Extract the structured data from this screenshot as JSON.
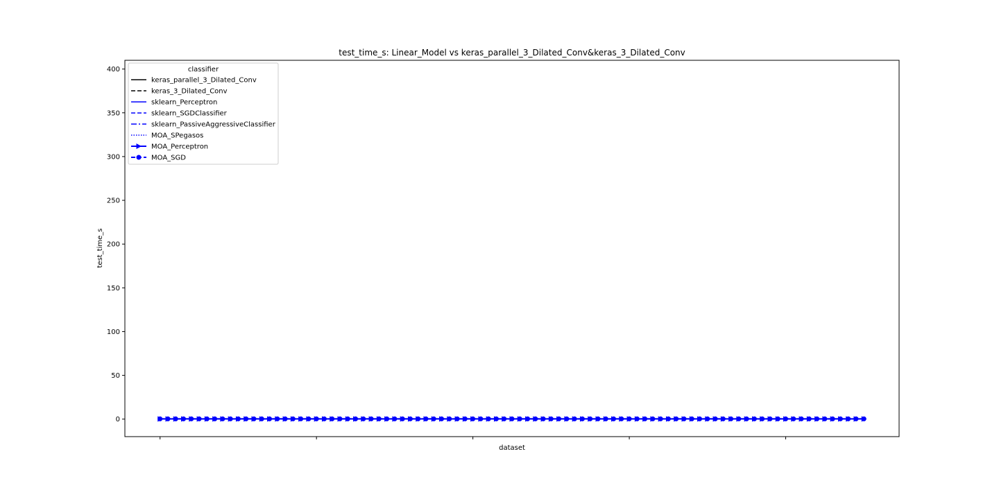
{
  "chart_data": {
    "type": "line",
    "title": "test_time_s: Linear_Model vs keras_parallel_3_Dilated_Conv&keras_3_Dilated_Conv",
    "xlabel": "dataset",
    "ylabel": "test_time_s",
    "ylim": [
      -20,
      410
    ],
    "yticks": [
      0,
      50,
      100,
      150,
      200,
      250,
      300,
      350,
      400
    ],
    "xlim": [
      -4.5,
      94.5
    ],
    "xticks": [
      0,
      20,
      40,
      60,
      80
    ],
    "grid": false,
    "legend": {
      "title": "classifier",
      "placement": "top-left"
    },
    "series": [
      {
        "name": "keras_parallel_3_Dilated_Conv",
        "color": "#000000",
        "dash": "solid",
        "marker": "none",
        "values": [
          0.5,
          0.5,
          0.5,
          0.5,
          0.5,
          0.5,
          0.5,
          0.5,
          0.5,
          0.5,
          0.5,
          0.5,
          0.5,
          0.5,
          0.5,
          0.5,
          0.5,
          0.5,
          0.5,
          0.5,
          0.5,
          0.5,
          0.5,
          0.5,
          0.5,
          0.5,
          0.5,
          0.5,
          0.5,
          0.5,
          0.5,
          0.5,
          0.5,
          0.5,
          0.5,
          0.5,
          0.5,
          0.5,
          0.5,
          0.5,
          0.5,
          0.5,
          0.5,
          0.5,
          0.5,
          0.5,
          0.5,
          0.5,
          0.5,
          0.5,
          0.5,
          0.5,
          0.5,
          0.5,
          0.5,
          0.5,
          0.5,
          0.5,
          0.5,
          0.5,
          0.5,
          0.5,
          0.5,
          0.5,
          0.5,
          0.5,
          0.5,
          0.5,
          0.5,
          0.5,
          0.5,
          0.5,
          0.5,
          0.5,
          0.5,
          0.5,
          0.5,
          0.5,
          0.5,
          0.5,
          0.5,
          0.5,
          0.5,
          0.5,
          0.5,
          0.5,
          0.5,
          0.5,
          0.5,
          0.5,
          0.5
        ]
      },
      {
        "name": "keras_3_Dilated_Conv",
        "color": "#000000",
        "dash": "dashed",
        "marker": "none",
        "values": [
          0.3,
          0.3,
          0.3,
          0.3,
          0.3,
          0.3,
          0.3,
          0.3,
          0.3,
          0.3,
          0.3,
          0.3,
          0.3,
          0.3,
          0.3,
          0.3,
          0.3,
          0.3,
          0.3,
          0.3,
          0.3,
          0.3,
          0.3,
          0.3,
          0.3,
          0.3,
          0.3,
          0.3,
          0.3,
          0.3,
          0.3,
          0.3,
          0.3,
          0.3,
          0.3,
          0.3,
          0.3,
          0.3,
          0.3,
          0.3,
          0.3,
          0.3,
          0.3,
          0.3,
          0.3,
          0.3,
          0.3,
          0.3,
          0.3,
          0.3,
          0.3,
          0.3,
          0.3,
          0.3,
          0.3,
          0.3,
          0.3,
          0.3,
          0.3,
          0.3,
          0.3,
          0.3,
          0.3,
          0.3,
          0.3,
          0.3,
          0.3,
          0.3,
          0.3,
          0.3,
          0.3,
          0.3,
          0.3,
          0.3,
          0.3,
          0.3,
          0.3,
          0.3,
          0.3,
          0.3,
          0.3,
          0.3,
          0.3,
          0.3,
          0.3,
          0.3,
          0.3,
          0.3,
          0.3,
          0.3,
          0.3
        ]
      },
      {
        "name": "sklearn_Perceptron",
        "color": "#0000ff",
        "dash": "solid",
        "marker": "none",
        "constant": 0.1
      },
      {
        "name": "sklearn_SGDClassifier",
        "color": "#0000ff",
        "dash": "dashed",
        "marker": "none",
        "constant": 0.1
      },
      {
        "name": "sklearn_PassiveAggressiveClassifier",
        "color": "#0000ff",
        "dash": "dashdot",
        "marker": "none",
        "constant": 0.1
      },
      {
        "name": "MOA_SPegasos",
        "color": "#0000ff",
        "dash": "dotted",
        "marker": "none",
        "constant": 0.2
      },
      {
        "name": "MOA_Perceptron",
        "color": "#0000ff",
        "dash": "solid",
        "marker": "triangle-right",
        "constant": 0.2
      },
      {
        "name": "MOA_SGD",
        "color": "#0000ff",
        "dash": "dashed",
        "marker": "circle",
        "constant": 0.3
      }
    ]
  }
}
